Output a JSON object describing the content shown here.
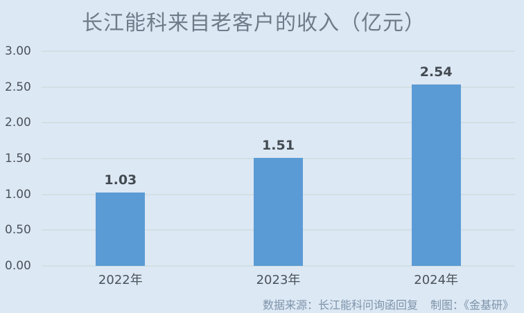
{
  "chart_data": {
    "type": "bar",
    "title": "长江能科来自老客户的收入（亿元）",
    "categories": [
      "2022年",
      "2023年",
      "2024年"
    ],
    "values": [
      1.03,
      1.51,
      2.54
    ],
    "value_labels": [
      "1.03",
      "1.51",
      "2.54"
    ],
    "y_ticks": [
      "3.00",
      "2.50",
      "2.00",
      "1.50",
      "1.00",
      "0.50",
      "0.00"
    ],
    "ylim": [
      0,
      3
    ],
    "grid": true,
    "legend": "none",
    "colors": {
      "background": "#dce8f4",
      "bar": "#5b9bd5",
      "gridline": "#d2dfe2",
      "title_text": "#6e7c89",
      "tick_text": "#4a525a",
      "value_label_text": "#434a51",
      "footer_text": "#7e93a9"
    }
  },
  "footer": {
    "source_label": "数据来源：长江能科问询函回复",
    "credit_label": "制图：《金基研》"
  }
}
